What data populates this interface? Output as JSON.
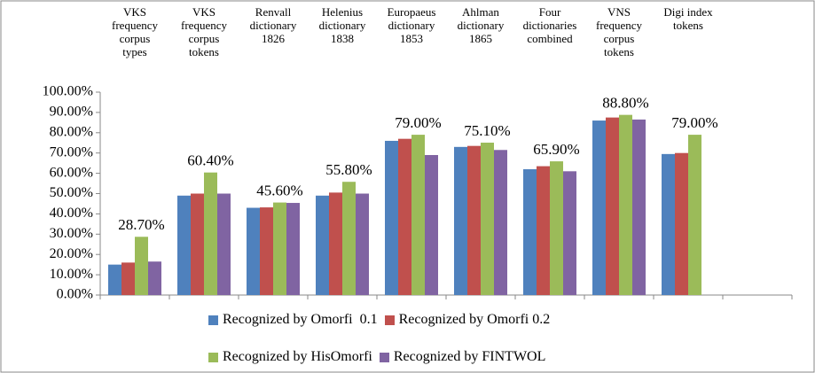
{
  "chart_data": {
    "type": "bar",
    "categories": [
      "VKS\nfrequency\ncorpus\ntypes",
      "VKS\nfrequency\ncorpus\ntokens",
      "Renvall\ndictionary\n1826",
      "Helenius\ndictionary\n1838",
      "Europaeus\ndictionary\n1853",
      "Ahlman\ndictionary\n1865",
      "Four\ndictionaries\ncombined",
      "VNS\nfrequency\ncorpus\ntokens",
      "Digi index\ntokens",
      null
    ],
    "series": [
      {
        "name": "Recognized by Omorfi  0.1",
        "color": "#4f81bd",
        "values": [
          15,
          49,
          43,
          49,
          76,
          73,
          62,
          86,
          69.5,
          null
        ]
      },
      {
        "name": "Recognized by Omorfi 0.2",
        "color": "#c0504d",
        "values": [
          16,
          50,
          43.2,
          50.5,
          77,
          73.5,
          63.5,
          87.5,
          70,
          null
        ]
      },
      {
        "name": "Recognized by HisOmorfi",
        "color": "#9bbb59",
        "values": [
          28.7,
          60.4,
          45.6,
          55.8,
          79,
          75.1,
          65.9,
          88.8,
          79,
          null
        ],
        "value_labels": [
          "28.70%",
          "60.40%",
          "45.60%",
          "55.80%",
          "79.00%",
          "75.10%",
          "65.90%",
          "88.80%",
          "79.00%",
          null
        ]
      },
      {
        "name": "Recognized by FINTWOL",
        "color": "#8064a2",
        "values": [
          16.5,
          50,
          45.4,
          50,
          69,
          71.5,
          61,
          86.5,
          null,
          null
        ]
      }
    ],
    "ylim": [
      0,
      100
    ],
    "yticks": [
      {
        "value": 0,
        "label": "0.00%"
      },
      {
        "value": 10,
        "label": "10.00%"
      },
      {
        "value": 20,
        "label": "20.00%"
      },
      {
        "value": 30,
        "label": "30.00%"
      },
      {
        "value": 40,
        "label": "40.00%"
      },
      {
        "value": 50,
        "label": "50.00%"
      },
      {
        "value": 60,
        "label": "60.00%"
      },
      {
        "value": 70,
        "label": "70.00%"
      },
      {
        "value": 80,
        "label": "80.00%"
      },
      {
        "value": 90,
        "label": "90.00%"
      },
      {
        "value": 100,
        "label": "100.00%"
      }
    ],
    "grid": false
  }
}
